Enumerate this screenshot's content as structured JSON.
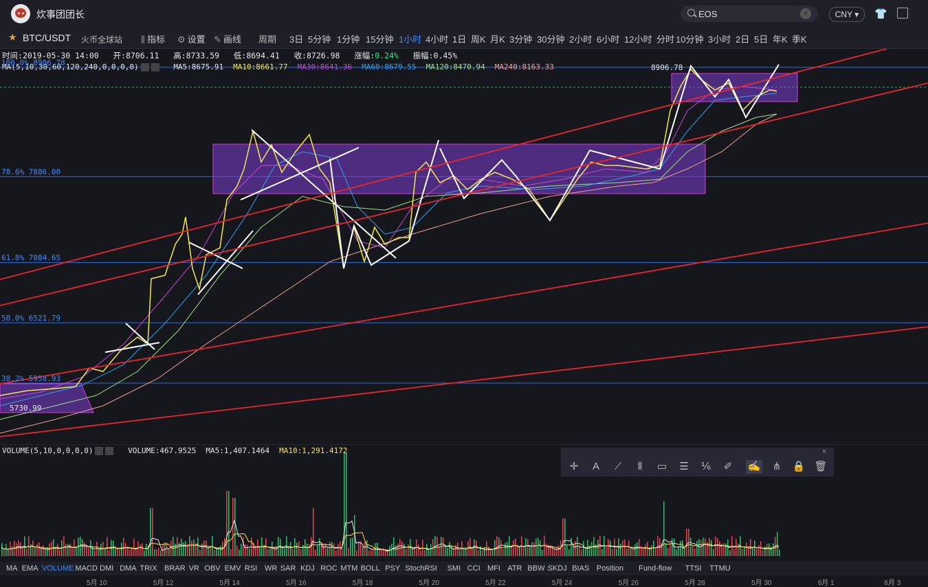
{
  "header": {
    "user_name": "炊事团团长",
    "search_value": "EOS",
    "search_clear": "×",
    "currency": "CNY ▾",
    "shirt_icon": "👕"
  },
  "pair": {
    "star": "★",
    "title": "BTC/USDT",
    "exchange": "火币全球站"
  },
  "tools": [
    {
      "icon": "⫼",
      "label": "指标"
    },
    {
      "icon": "⚙",
      "label": "设置"
    },
    {
      "icon": "✎",
      "label": "画线"
    }
  ],
  "period_label": "周期",
  "periods": [
    "3日",
    "5分钟",
    "1分钟",
    "15分钟",
    "1小时",
    "4小时",
    "1日",
    "周K",
    "月K",
    "3分钟",
    "30分钟",
    "2小时",
    "6小时",
    "12小时",
    "分时",
    "10分钟",
    "3小时",
    "2日",
    "5日",
    "年K",
    "季K"
  ],
  "active_period": "1小时",
  "info": {
    "time_label": "时间:",
    "time": "2019-05-30 14:00",
    "open_label": "开:",
    "open": "8706.11",
    "high_label": "高:",
    "high": "8733.59",
    "low_label": "低:",
    "low": "8694.41",
    "close_label": "收:",
    "close": "8726.98",
    "change_label": "涨幅:",
    "change": "0.24%",
    "amp_label": "振幅:",
    "amp": "0.45%"
  },
  "ma_info": {
    "label": "MA(5,10,30,60,120,240,0,0,0,0)",
    "items": [
      {
        "text": "MA5:8675.91",
        "color": "#e6e6ea"
      },
      {
        "text": "MA10:8661.77",
        "color": "#f5e653"
      },
      {
        "text": "MA30:8641.36",
        "color": "#c04ad0"
      },
      {
        "text": "MA60:8679.55",
        "color": "#2ea2f2"
      },
      {
        "text": "MA120:8470.94",
        "color": "#9ee08c"
      },
      {
        "text": "MA240:8163.33",
        "color": "#f0a090"
      }
    ]
  },
  "fib_levels": [
    {
      "label": "100.0% 8906.78",
      "value": 8906.78
    },
    {
      "label": "78.6% 7886.00",
      "value": 7886.0
    },
    {
      "label": "61.8% 7084.65",
      "value": 7084.65
    },
    {
      "label": "50.0% 6521.79",
      "value": 6521.79
    },
    {
      "label": "38.2% 5958.93",
      "value": 5958.93
    }
  ],
  "fib_top_label": "8906.78",
  "low_label": "5730.99",
  "volume": {
    "label": "VOLUME(5,10,0,0,0,0)",
    "items": [
      {
        "text": "VOLUME:467.9525",
        "color": "#e6e6ea"
      },
      {
        "text": "MA5:1,407.1464",
        "color": "#e6e6ea"
      },
      {
        "text": "MA10:1,291.4172",
        "color": "#f5e653"
      }
    ]
  },
  "draw_tools": [
    {
      "name": "crosshair-icon",
      "glyph": "✛"
    },
    {
      "name": "text-tool-icon",
      "glyph": "A"
    },
    {
      "name": "line-tool-icon",
      "glyph": "⟋"
    },
    {
      "name": "parallel-lines-icon",
      "glyph": "⦀"
    },
    {
      "name": "rectangle-icon",
      "glyph": "▭"
    },
    {
      "name": "fib-retracement-icon",
      "glyph": "☰"
    },
    {
      "name": "measure-icon",
      "glyph": "⅙"
    },
    {
      "name": "ruler-icon",
      "glyph": "✐"
    },
    {
      "name": "pen-icon",
      "glyph": "✍"
    },
    {
      "name": "pattern-icon",
      "glyph": "⋔"
    },
    {
      "name": "lock-icon",
      "glyph": "🔒"
    },
    {
      "name": "trash-icon",
      "glyph": "🗑"
    }
  ],
  "draw_close": "×",
  "indicators": [
    "MA",
    "EMA",
    "VOLUME",
    "MACD",
    "DMI",
    "DMA",
    "TRIX",
    "BRAR",
    "VR",
    "OBV",
    "EMV",
    "RSI",
    "WR",
    "SAR",
    "KDJ",
    "ROC",
    "MTM",
    "BOLL",
    "PSY",
    "StochRSI",
    "SMI",
    "CCI",
    "MFI",
    "ATR",
    "BBW",
    "SKDJ",
    "BIAS",
    "Position",
    "Fund-flow",
    "TTSI",
    "TTMU"
  ],
  "active_indicator": "VOLUME",
  "dates": [
    "5月 10",
    "5月 12",
    "5月 14",
    "5月 16",
    "5月 18",
    "5月 20",
    "5月 22",
    "5月 24",
    "5月 26",
    "5月 28",
    "5月 30",
    "6月 1",
    "6月 3"
  ]
}
